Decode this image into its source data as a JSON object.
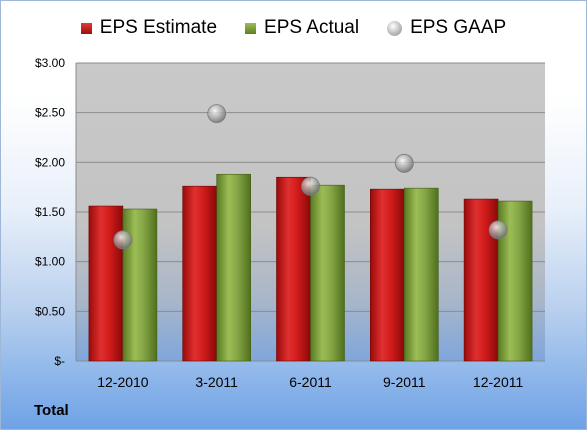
{
  "chart_data": {
    "type": "bar",
    "categories": [
      "12-2010",
      "3-2011",
      "6-2011",
      "9-2011",
      "12-2011"
    ],
    "series": [
      {
        "name": "EPS Estimate",
        "type": "bar",
        "color": "#c81818",
        "values": [
          1.56,
          1.76,
          1.85,
          1.73,
          1.63
        ]
      },
      {
        "name": "EPS Actual",
        "type": "bar",
        "color": "#76973a",
        "values": [
          1.53,
          1.88,
          1.77,
          1.74,
          1.61
        ]
      },
      {
        "name": "EPS GAAP",
        "type": "scatter",
        "color": "#a8a8a8",
        "values": [
          1.22,
          2.49,
          1.76,
          1.99,
          1.32
        ]
      }
    ],
    "ylim": [
      0,
      3.0
    ],
    "yticks": [
      0,
      0.5,
      1.0,
      1.5,
      2.0,
      2.5,
      3.0
    ],
    "ytick_labels": [
      "$-",
      "$0.50",
      "$1.00",
      "$1.50",
      "$2.00",
      "$2.50",
      "$3.00"
    ],
    "grid": true,
    "legend_position": "top-center",
    "xlabel": "",
    "ylabel": "",
    "title": ""
  },
  "footer": {
    "label": "Total"
  }
}
